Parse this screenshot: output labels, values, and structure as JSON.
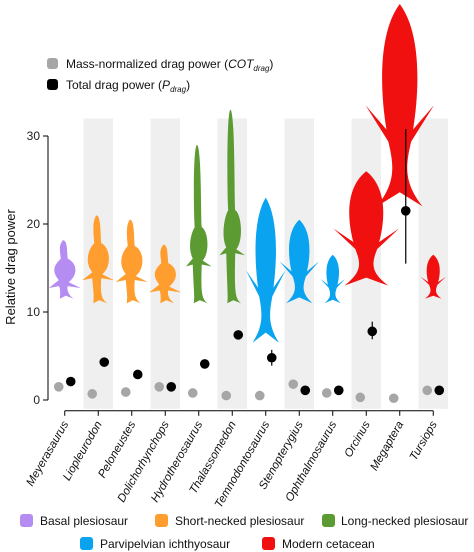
{
  "chart_data": {
    "type": "scatter",
    "ylabel": "Relative drag power",
    "ylim": [
      -1,
      32
    ],
    "yticks": [
      0,
      10,
      20,
      30
    ],
    "categories": [
      "Meyerasaurus",
      "Liopleurodon",
      "Peloneustes",
      "Dolichorhynchops",
      "Hydrotherosaurus",
      "Thalassomedon",
      "Temnodontosaurus",
      "Stenopterygius",
      "Ophthalmosaurus",
      "Orcinus",
      "Megaptera",
      "Tursiops"
    ],
    "group_of_category": [
      "Basal plesiosaur",
      "Short-necked plesiosaur",
      "Short-necked plesiosaur",
      "Short-necked plesiosaur",
      "Long-necked plesiosaur",
      "Long-necked plesiosaur",
      "Parvipelvian ichthyosaur",
      "Parvipelvian ichthyosaur",
      "Parvipelvian ichthyosaur",
      "Modern cetacean",
      "Modern cetacean",
      "Modern cetacean"
    ],
    "series": [
      {
        "name": "Mass-normalized drag power (COTdrag)",
        "name_main": "Mass-normalized drag power (",
        "name_sym": "COT",
        "name_sub": "drag",
        "name_close": ")",
        "color": "#a6a6a6",
        "values": [
          1.5,
          0.7,
          0.9,
          1.5,
          0.8,
          0.5,
          0.5,
          1.8,
          0.8,
          0.3,
          0.2,
          1.1
        ]
      },
      {
        "name": "Total drag power (Pdrag)",
        "name_main": "Total drag power (",
        "name_sym": "P",
        "name_sub": "drag",
        "name_close": ")",
        "color": "#000000",
        "values": [
          2.1,
          4.3,
          2.9,
          1.5,
          4.1,
          7.4,
          4.8,
          1.1,
          1.1,
          7.8,
          21.5,
          1.1
        ],
        "error": [
          null,
          null,
          null,
          null,
          null,
          null,
          [
            3.9,
            5.7
          ],
          null,
          null,
          [
            6.9,
            8.9
          ],
          [
            15.5,
            30.8
          ],
          null
        ]
      }
    ],
    "shaded_columns": [
      "Liopleurodon",
      "Dolichorhynchops",
      "Thalassomedon",
      "Stenopterygius",
      "Orcinus",
      "Tursiops"
    ],
    "silhouette_sizes": [
      {
        "category": "Meyerasaurus",
        "low": 11.5,
        "high": 18.5
      },
      {
        "category": "Liopleurodon",
        "low": 11.0,
        "high": 21.5
      },
      {
        "category": "Peloneustes",
        "low": 11.0,
        "high": 21.0
      },
      {
        "category": "Dolichorhynchops",
        "low": 11.0,
        "high": 18.0
      },
      {
        "category": "Hydrotherosaurus",
        "low": 11.0,
        "high": 29.0
      },
      {
        "category": "Thalassomedon",
        "low": 11.0,
        "high": 33.0
      },
      {
        "category": "Temnodontosaurus",
        "low": 6.5,
        "high": 23.0
      },
      {
        "category": "Stenopterygius",
        "low": 11.0,
        "high": 20.5
      },
      {
        "category": "Ophthalmosaurus",
        "low": 11.0,
        "high": 16.5
      },
      {
        "category": "Orcinus",
        "low": 13.0,
        "high": 26.0
      },
      {
        "category": "Megaptera",
        "low": 22.0,
        "high": 45.0
      },
      {
        "category": "Tursiops",
        "low": 11.5,
        "high": 16.5
      }
    ],
    "groups": [
      {
        "name": "Basal plesiosaur",
        "color": "#b58cf2"
      },
      {
        "name": "Short-necked plesiosaur",
        "color": "#ff9d2e"
      },
      {
        "name": "Long-necked plesiosaur",
        "color": "#5c9a32"
      },
      {
        "name": "Parvipelvian ichthyosaur",
        "color": "#0aa3f0"
      },
      {
        "name": "Modern cetacean",
        "color": "#f01010"
      }
    ],
    "legend_position": "top-left",
    "grid": false
  }
}
